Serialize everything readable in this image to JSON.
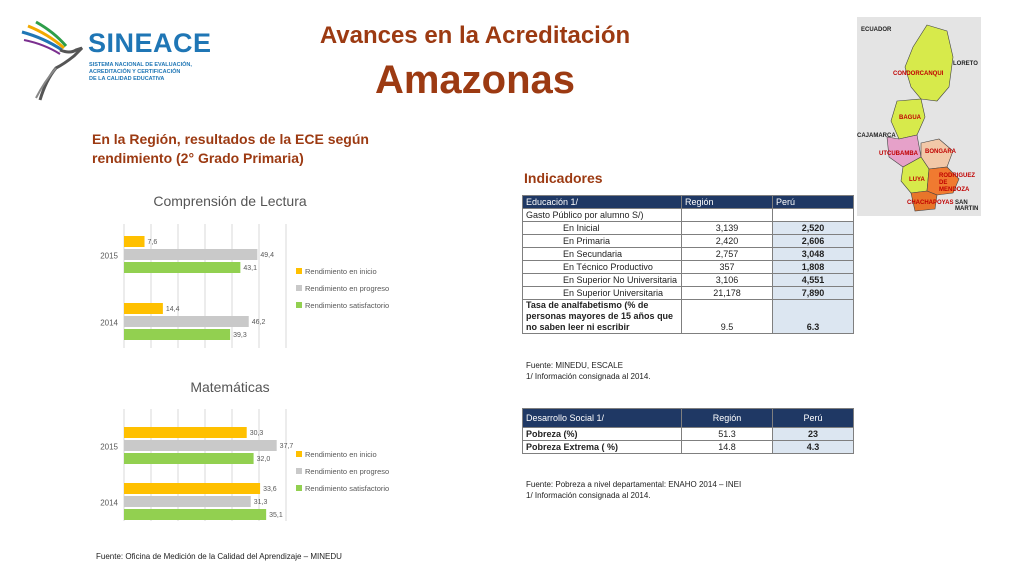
{
  "logo": {
    "name": "SINEACE",
    "subtitle_lines": [
      "SISTEMA NACIONAL DE EVALUACIÓN,",
      "ACREDITACIÓN Y CERTIFICACIÓN",
      "DE LA CALIDAD EDUCATIVA"
    ]
  },
  "header": {
    "title": "Avances en la Acreditación",
    "region": "Amazonas"
  },
  "subhead": "En la Región, resultados de la ECE según rendimiento (2° Grado Primaria)",
  "chart_data": [
    {
      "type": "bar",
      "title": "Comprensión de Lectura",
      "categories": [
        "2015",
        "2014"
      ],
      "series": [
        {
          "name": "Rendimiento en inicio",
          "values": [
            7.6,
            14.4
          ],
          "labels": [
            "7,6",
            "14,4"
          ],
          "color": "#ffc000"
        },
        {
          "name": "Rendimiento en progreso",
          "values": [
            49.4,
            46.2
          ],
          "labels": [
            "49,4",
            "46,2"
          ],
          "color": "#c9c9c9"
        },
        {
          "name": "Rendimiento satisfactorio",
          "values": [
            43.1,
            39.3
          ],
          "labels": [
            "43,1",
            "39,3"
          ],
          "color": "#92d050"
        }
      ],
      "xlim": [
        0,
        60
      ],
      "grid": true,
      "legend": "right"
    },
    {
      "type": "bar",
      "title": "Matemáticas",
      "categories": [
        "2015",
        "2014"
      ],
      "series": [
        {
          "name": "Rendimiento en inicio",
          "values": [
            30.3,
            33.6
          ],
          "labels": [
            "30,3",
            "33,6"
          ],
          "color": "#ffc000"
        },
        {
          "name": "Rendimiento en progreso",
          "values": [
            37.7,
            31.3
          ],
          "labels": [
            "37,7",
            "31,3"
          ],
          "color": "#c9c9c9"
        },
        {
          "name": "Rendimiento satisfactorio",
          "values": [
            32.0,
            35.1
          ],
          "labels": [
            "32,0",
            "35,1"
          ],
          "color": "#92d050"
        }
      ],
      "xlim": [
        0,
        40
      ],
      "grid": true,
      "legend": "right"
    }
  ],
  "indicators": {
    "title": "Indicadores",
    "education": {
      "headers": [
        "Educación  1/",
        "Región",
        "Perú"
      ],
      "group1": "Gasto Público por alumno S/)",
      "rows": [
        {
          "label": "En Inicial",
          "region": "3,139",
          "peru": "2,520"
        },
        {
          "label": "En Primaria",
          "region": "2,420",
          "peru": "2,606"
        },
        {
          "label": "En Secundaria",
          "region": "2,757",
          "peru": "3,048"
        },
        {
          "label": "En Técnico Productivo",
          "region": "357",
          "peru": "1,808"
        },
        {
          "label": "En Superior No Universitaria",
          "region": "3,106",
          "peru": "4,551"
        },
        {
          "label": "En Superior Universitaria",
          "region": "21,178",
          "peru": "7,890"
        }
      ],
      "illiteracy_label": "Tasa de analfabetismo (% de personas mayores de 15 años que no saben leer ni escribir",
      "illiteracy_region": "9.5",
      "illiteracy_peru": "6.3",
      "source": "Fuente: MINEDU, ESCALE",
      "note": "1/ Información consignada al 2014."
    },
    "social": {
      "headers": [
        "Desarrollo Social   1/",
        "Región",
        "Perú"
      ],
      "rows": [
        {
          "label": "Pobreza (%)",
          "region": "51.3",
          "peru": "23"
        },
        {
          "label": "Pobreza Extrema  ( %)",
          "region": "14.8",
          "peru": "4.3"
        }
      ],
      "source": "Fuente: Pobreza a nivel departamental: ENAHO 2014 – INEI",
      "note": "1/ Información consignada al 2014."
    }
  },
  "map": {
    "labels": {
      "ecuador": "ECUADOR",
      "loreto": "LORETO",
      "condorcanqui": "CONDORCANQUI",
      "bagua": "BAGUA",
      "cajamarca": "CAJAMARCA",
      "utcubamba": "UTCUBAMBA",
      "bongara": "BONGARA",
      "luya": "LUYA",
      "rodriguez": "RODRIGUEZ DE MENDOZA",
      "chachapoyas": "CHACHAPOYAS",
      "san_martin": "SAN MARTIN"
    }
  },
  "footer": "Fuente: Oficina de Medición de la Calidad del Aprendizaje – MINEDU"
}
